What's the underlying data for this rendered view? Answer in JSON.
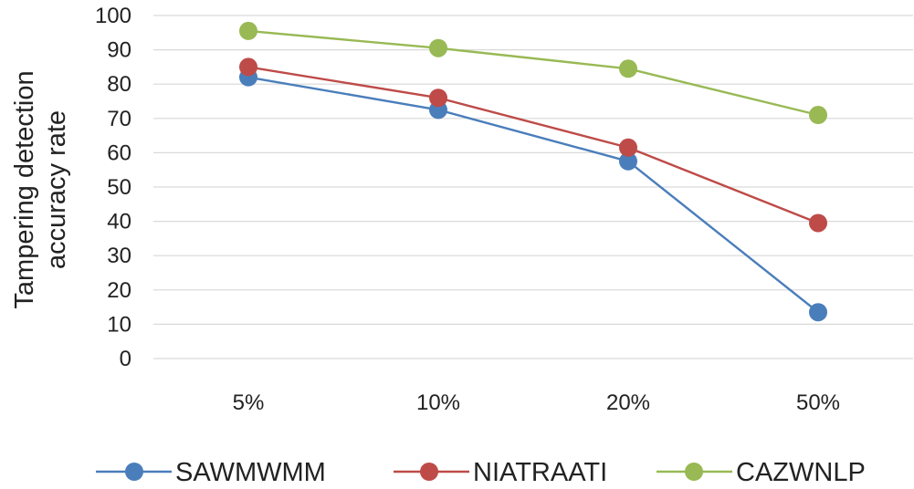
{
  "chart_data": {
    "type": "line",
    "title": "",
    "xlabel": "",
    "ylabel_lines": [
      "Tampering detection",
      "accuracy rate"
    ],
    "categories": [
      "5%",
      "10%",
      "20%",
      "50%"
    ],
    "y_ticks": [
      "0",
      "10",
      "20",
      "30",
      "40",
      "50",
      "60",
      "70",
      "80",
      "90",
      "100"
    ],
    "ylim": [
      0,
      100
    ],
    "grid": true,
    "legend_position": "bottom",
    "series": [
      {
        "name": "SAWMWMM",
        "color": "#4a7ebb",
        "values": [
          82,
          72.5,
          57.5,
          13.5
        ]
      },
      {
        "name": "NIATRAATI",
        "color": "#be4b48",
        "values": [
          85,
          76,
          61.5,
          39.5
        ]
      },
      {
        "name": "CAZWNLP",
        "color": "#98b954",
        "values": [
          95.5,
          90.5,
          84.5,
          71
        ]
      }
    ]
  }
}
